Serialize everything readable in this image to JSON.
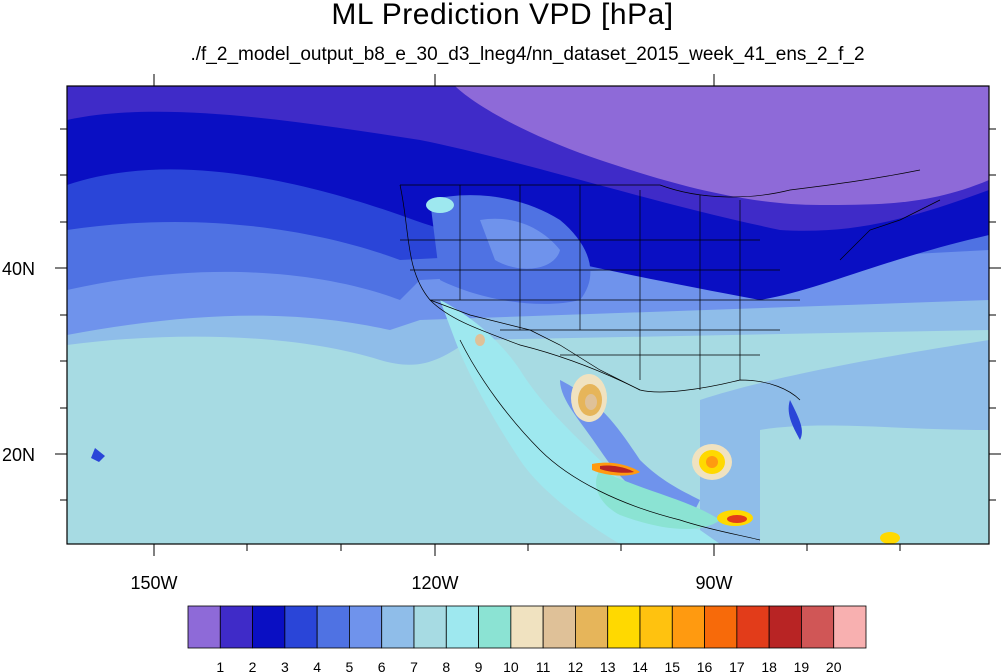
{
  "title": "ML Prediction VPD [hPa]",
  "subtitle": "./f_2_model_output_b8_e_30_d3_lneg4/nn_dataset_2015_week_41_ens_2_f_2",
  "axes": {
    "lon_labels": [
      "150W",
      "120W",
      "90W"
    ],
    "lat_labels": [
      "40N",
      "20N"
    ]
  },
  "colorbar": {
    "labels": [
      "1",
      "2",
      "3",
      "4",
      "5",
      "6",
      "7",
      "8",
      "9",
      "10",
      "11",
      "12",
      "13",
      "14",
      "15",
      "16",
      "17",
      "18",
      "19",
      "20"
    ],
    "colors": [
      "#8e6ad8",
      "#3f2bc8",
      "#0a0fc3",
      "#2a45d8",
      "#4f72e3",
      "#6f93ec",
      "#8fbde9",
      "#a7dbe3",
      "#9ee8ef",
      "#8be3d3",
      "#f0e2c0",
      "#dfc198",
      "#e6b55a",
      "#ffd900",
      "#ffc20f",
      "#ff9a10",
      "#f76a0a",
      "#e23c1a",
      "#b82424",
      "#d05656",
      "#f8b0b0"
    ]
  },
  "map": {
    "ocean_colors": {
      "far": "#a7dbe3",
      "mid": "#8fbde9",
      "near": "#6f93ec",
      "north": "#2a45d8",
      "deep": "#0a0fc3"
    },
    "hot_spots": [
      "#f0e2c0",
      "#dfc198",
      "#ffd900",
      "#ff9a10",
      "#e23c1a",
      "#b82424"
    ]
  }
}
